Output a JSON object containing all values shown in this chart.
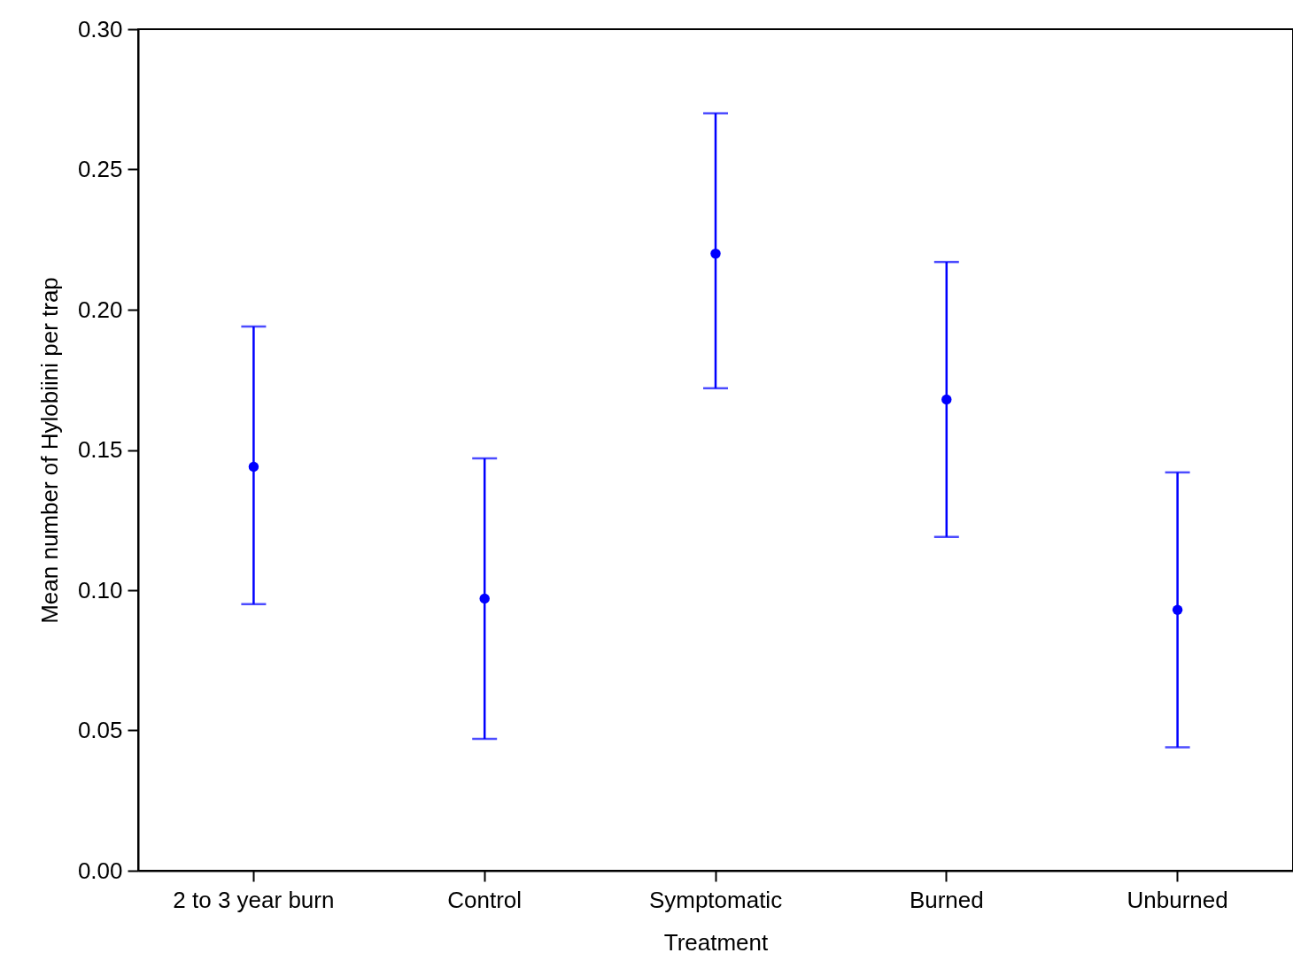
{
  "chart_data": {
    "type": "scatter",
    "xlabel": "Treatment",
    "ylabel": "Mean number of Hylobiini per trap",
    "categories": [
      "2  to 3 year burn",
      "Control",
      "Symptomatic",
      "Burned",
      "Unburned"
    ],
    "values": [
      0.144,
      0.097,
      0.22,
      0.168,
      0.093
    ],
    "errors": [
      [
        0.095,
        0.194
      ],
      [
        0.047,
        0.147
      ],
      [
        0.172,
        0.27
      ],
      [
        0.119,
        0.217
      ],
      [
        0.044,
        0.142
      ]
    ],
    "color": "#0000ff",
    "marker": "circle",
    "grid": false,
    "ylim": [
      0,
      0.3
    ],
    "yticks": [
      {
        "value": 0,
        "label": "0.00"
      },
      {
        "value": 0.05,
        "label": "0.05"
      },
      {
        "value": 0.1,
        "label": "0.10"
      },
      {
        "value": 0.15,
        "label": "0.15"
      },
      {
        "value": 0.2,
        "label": "0.20"
      },
      {
        "value": 0.25,
        "label": "0.25"
      },
      {
        "value": 0.3,
        "label": "0.30"
      }
    ]
  }
}
